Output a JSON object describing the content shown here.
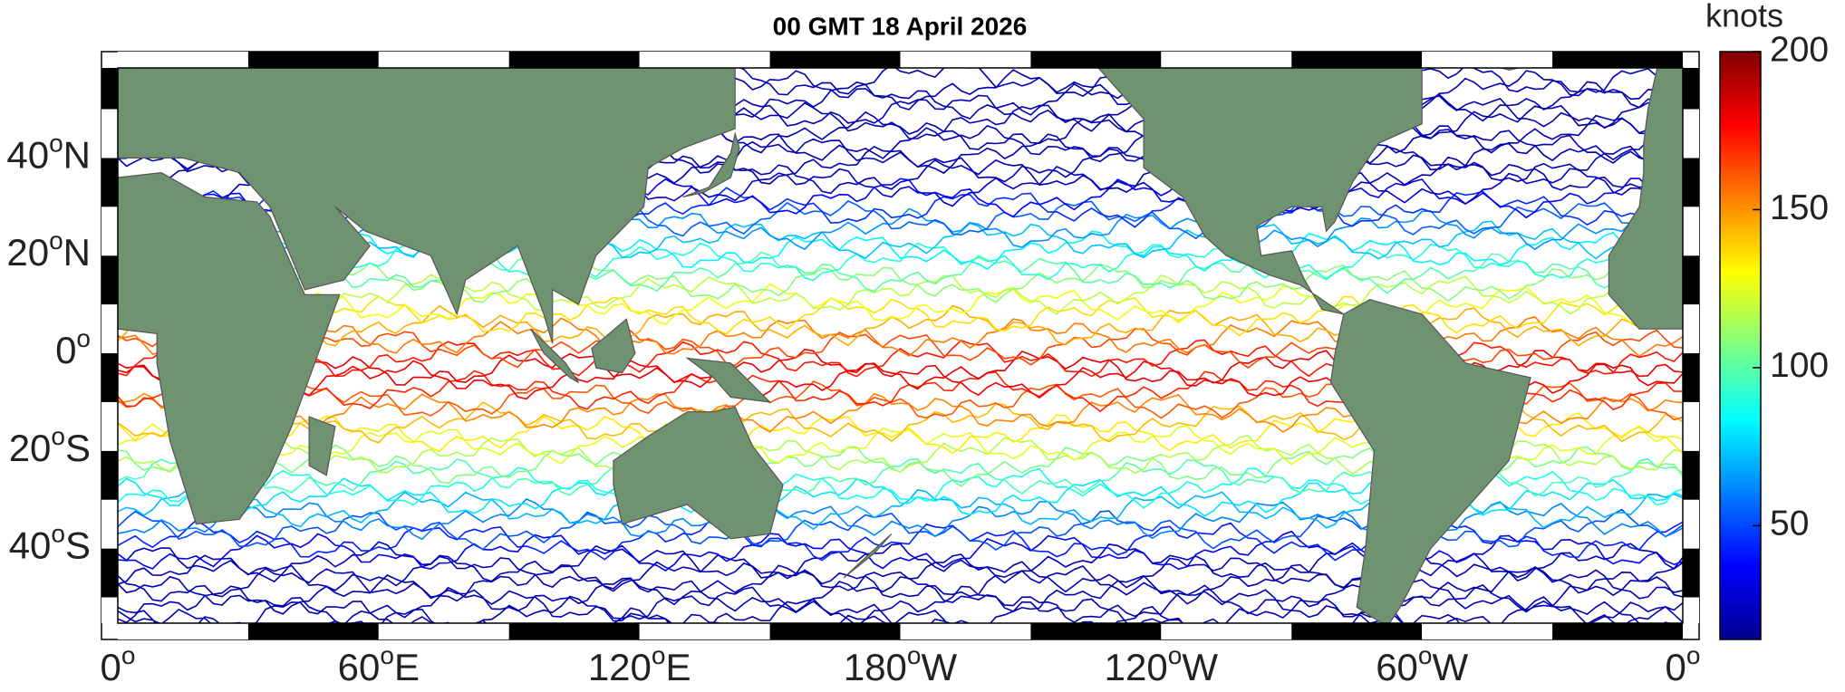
{
  "title": "00 GMT 18 April 2026",
  "colorbar": {
    "label": "knots",
    "clim": [
      14,
      200
    ],
    "ticks": [
      50,
      100,
      150,
      200
    ]
  },
  "lat_labels": [
    {
      "deg": "40",
      "sup": "o",
      "hemi": "N"
    },
    {
      "deg": "20",
      "sup": "o",
      "hemi": "N"
    },
    {
      "deg": "0",
      "sup": "o"
    },
    {
      "deg": "20",
      "sup": "o",
      "hemi": "S"
    },
    {
      "deg": "40",
      "sup": "o",
      "hemi": "S"
    }
  ],
  "lon_labels": [
    {
      "deg": "0",
      "sup": "o"
    },
    {
      "deg": "60",
      "sup": "o",
      "hemi": "E"
    },
    {
      "deg": "120",
      "sup": "o",
      "hemi": "E"
    },
    {
      "deg": "180",
      "sup": "o",
      "hemi": "W"
    },
    {
      "deg": "120",
      "sup": "o",
      "hemi": "W"
    },
    {
      "deg": "60",
      "sup": "o",
      "hemi": "W"
    },
    {
      "deg": "0",
      "sup": "o"
    }
  ]
}
